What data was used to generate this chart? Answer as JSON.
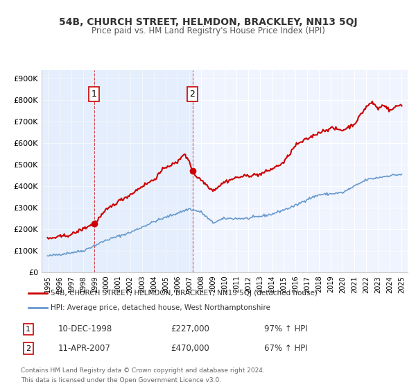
{
  "title": "54B, CHURCH STREET, HELMDON, BRACKLEY, NN13 5QJ",
  "subtitle": "Price paid vs. HM Land Registry's House Price Index (HPI)",
  "title_fontsize": 11,
  "subtitle_fontsize": 9,
  "background_color": "#ffffff",
  "plot_bg_color": "#f0f4ff",
  "grid_color": "#ffffff",
  "ylabel_ticks": [
    "£0",
    "£100K",
    "£200K",
    "£300K",
    "£400K",
    "£500K",
    "£600K",
    "£700K",
    "£800K",
    "£900K"
  ],
  "ytick_values": [
    0,
    100000,
    200000,
    300000,
    400000,
    500000,
    600000,
    700000,
    800000,
    900000
  ],
  "ylim": [
    0,
    940000
  ],
  "xlim_start": 1994.5,
  "xlim_end": 2025.5,
  "xtick_labels": [
    "1995",
    "1996",
    "1997",
    "1998",
    "1999",
    "2000",
    "2001",
    "2002",
    "2003",
    "2004",
    "2005",
    "2006",
    "2007",
    "2008",
    "2009",
    "2010",
    "2011",
    "2012",
    "2013",
    "2014",
    "2015",
    "2016",
    "2017",
    "2018",
    "2019",
    "2020",
    "2021",
    "2022",
    "2023",
    "2024",
    "2025"
  ],
  "sale1_x": 1998.95,
  "sale1_y": 227000,
  "sale1_label": "1",
  "sale1_date": "10-DEC-1998",
  "sale1_price": "£227,000",
  "sale1_hpi": "97% ↑ HPI",
  "sale2_x": 2007.27,
  "sale2_y": 470000,
  "sale2_label": "2",
  "sale2_date": "11-APR-2007",
  "sale2_price": "£470,000",
  "sale2_hpi": "67% ↑ HPI",
  "property_color": "#cc0000",
  "hpi_color": "#6699cc",
  "hpi_color_light": "#aaccee",
  "legend_property_label": "54B, CHURCH STREET, HELMDON, BRACKLEY, NN13 5QJ (detached house)",
  "legend_hpi_label": "HPI: Average price, detached house, West Northamptonshire",
  "footer_line1": "Contains HM Land Registry data © Crown copyright and database right 2024.",
  "footer_line2": "This data is licensed under the Open Government Licence v3.0."
}
